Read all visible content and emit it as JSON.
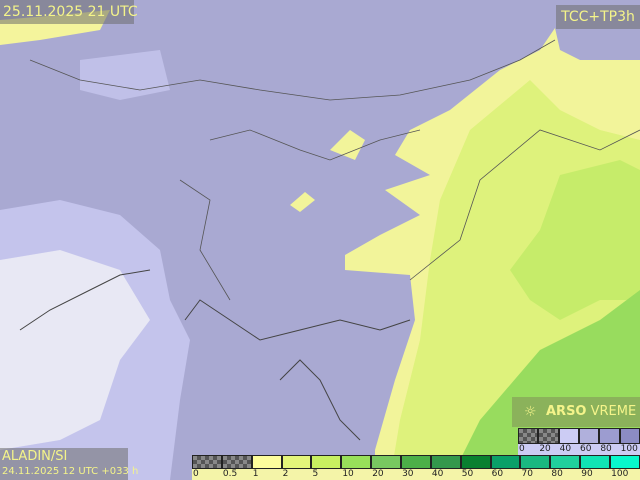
{
  "header": {
    "valid_time": "25.11.2025 21 UTC",
    "product": "TCC+TP3h"
  },
  "footer": {
    "model": "ALADIN/SI",
    "run": "24.11.2025 12 UTC +033 h"
  },
  "brand": {
    "icon": "sun-cloud-icon",
    "bold": "ARSO",
    "rest": " VREME"
  },
  "cloud_legend": {
    "ticks": [
      "0",
      "20",
      "40",
      "60",
      "80",
      "100"
    ],
    "colors": [
      "checker",
      "checker",
      "#ccccf4",
      "#b0b0dc",
      "#9c9cd0",
      "#8c8cc4"
    ]
  },
  "precip_legend": {
    "ticks": [
      "0",
      "0.5",
      "1",
      "2",
      "5",
      "10",
      "20",
      "30",
      "40",
      "50",
      "60",
      "70",
      "80",
      "90",
      "100"
    ],
    "colors": [
      "checker",
      "checker",
      "#fdfd9c",
      "#e4f57a",
      "#c8f060",
      "#98e05a",
      "#78c860",
      "#4caf48",
      "#34984c",
      "#0a8030",
      "#0aa068",
      "#1ab880",
      "#20d09c",
      "#10e4b4",
      "#08f8cc"
    ]
  }
}
